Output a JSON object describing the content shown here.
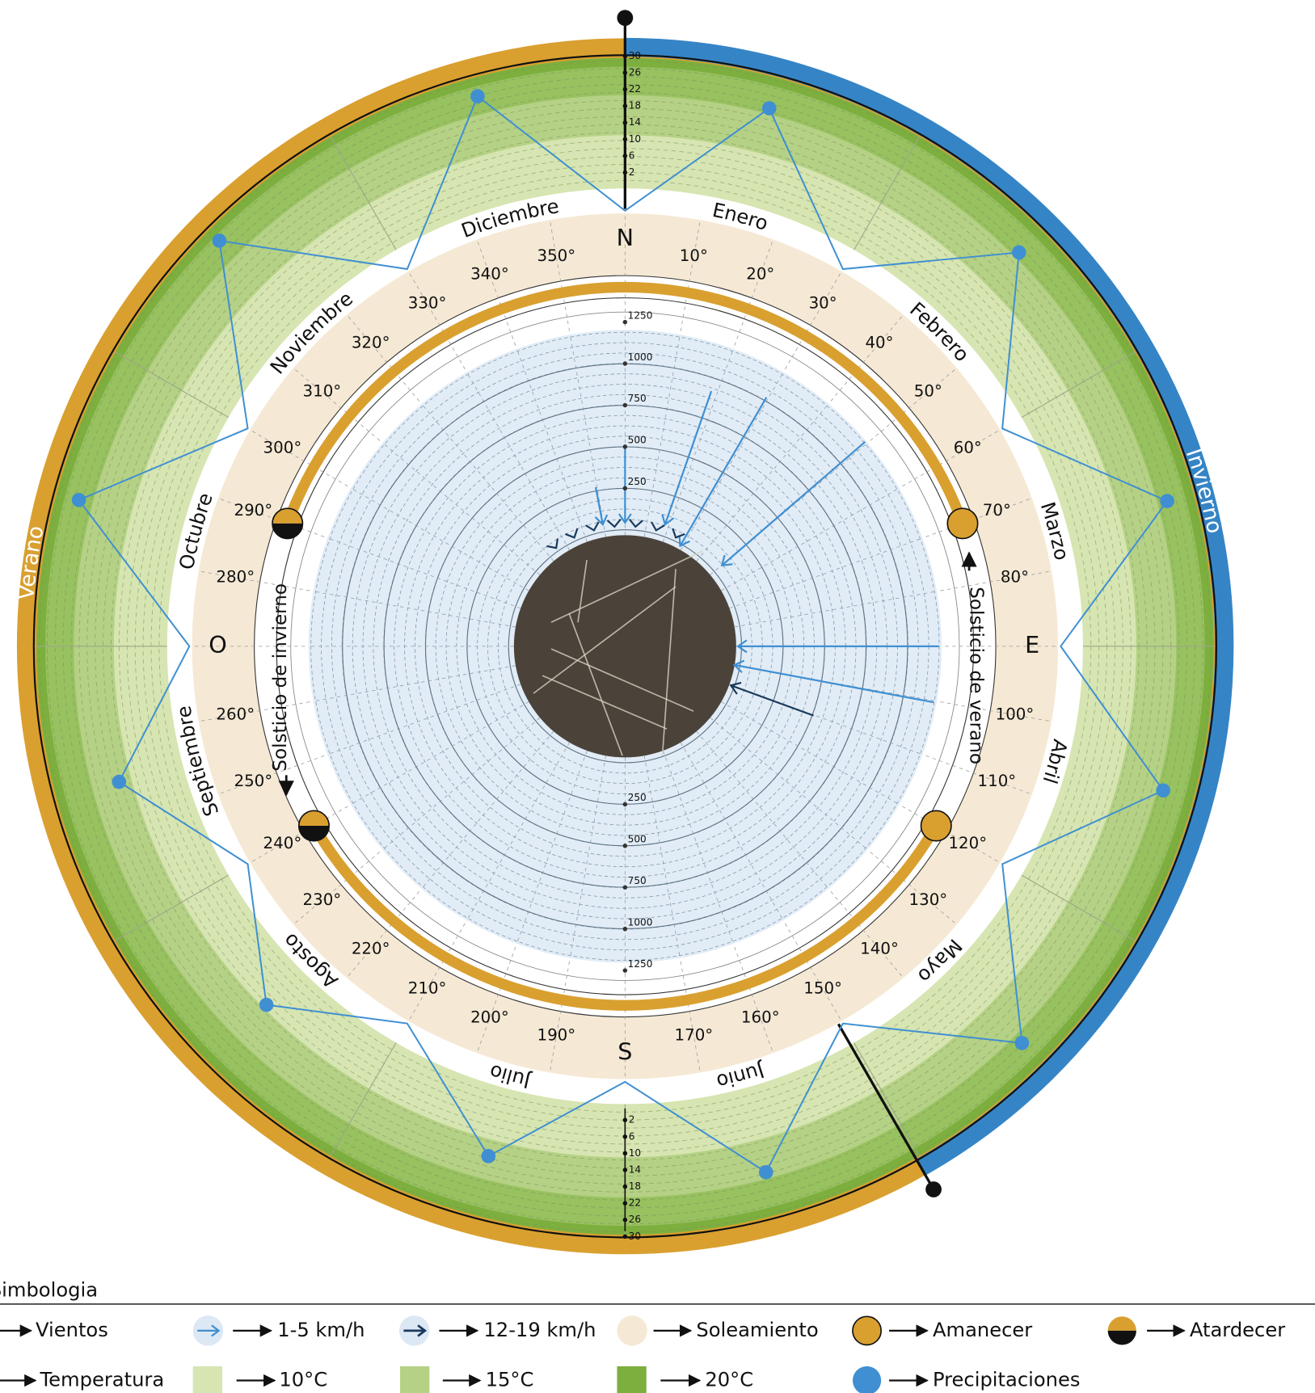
{
  "compass": [
    "N",
    "E",
    "S",
    "O"
  ],
  "months": [
    "Enero",
    "Febrero",
    "Marzo",
    "Abril",
    "Mayo",
    "Junio",
    "Julio",
    "Agosto",
    "Septiembre",
    "Octubre",
    "Noviembre",
    "Diciembre"
  ],
  "degree_labels": [
    "10°",
    "20°",
    "30°",
    "40°",
    "50°",
    "60°",
    "70°",
    "80°",
    "100°",
    "110°",
    "120°",
    "130°",
    "140°",
    "150°",
    "160°",
    "170°",
    "190°",
    "200°",
    "210°",
    "220°",
    "230°",
    "240°",
    "250°",
    "260°",
    "280°",
    "290°",
    "300°",
    "310°",
    "320°",
    "330°",
    "340°",
    "350°"
  ],
  "seasons": {
    "winter": "Invierno",
    "summer": "Verano"
  },
  "solstices": {
    "summer": "Solsticio de verano",
    "winter": "Solsticio de invierno"
  },
  "precipitation": {
    "ticks": [
      2,
      6,
      10,
      14,
      18,
      22,
      26,
      30
    ],
    "values": [
      22,
      22,
      23,
      22,
      23,
      19,
      15,
      10,
      14,
      24,
      26,
      25
    ]
  },
  "radiation": {
    "ticks": [
      250,
      500,
      750,
      1000,
      1250
    ]
  },
  "legend": {
    "title": "Simbologia",
    "items": [
      "Vientos",
      "1-5 km/h",
      "12-19 km/h",
      "Soleamiento",
      "Amanecer",
      "Atardecer",
      "Temperatura",
      "10°C",
      "15°C",
      "20°C",
      "Precipitaciones"
    ]
  }
}
